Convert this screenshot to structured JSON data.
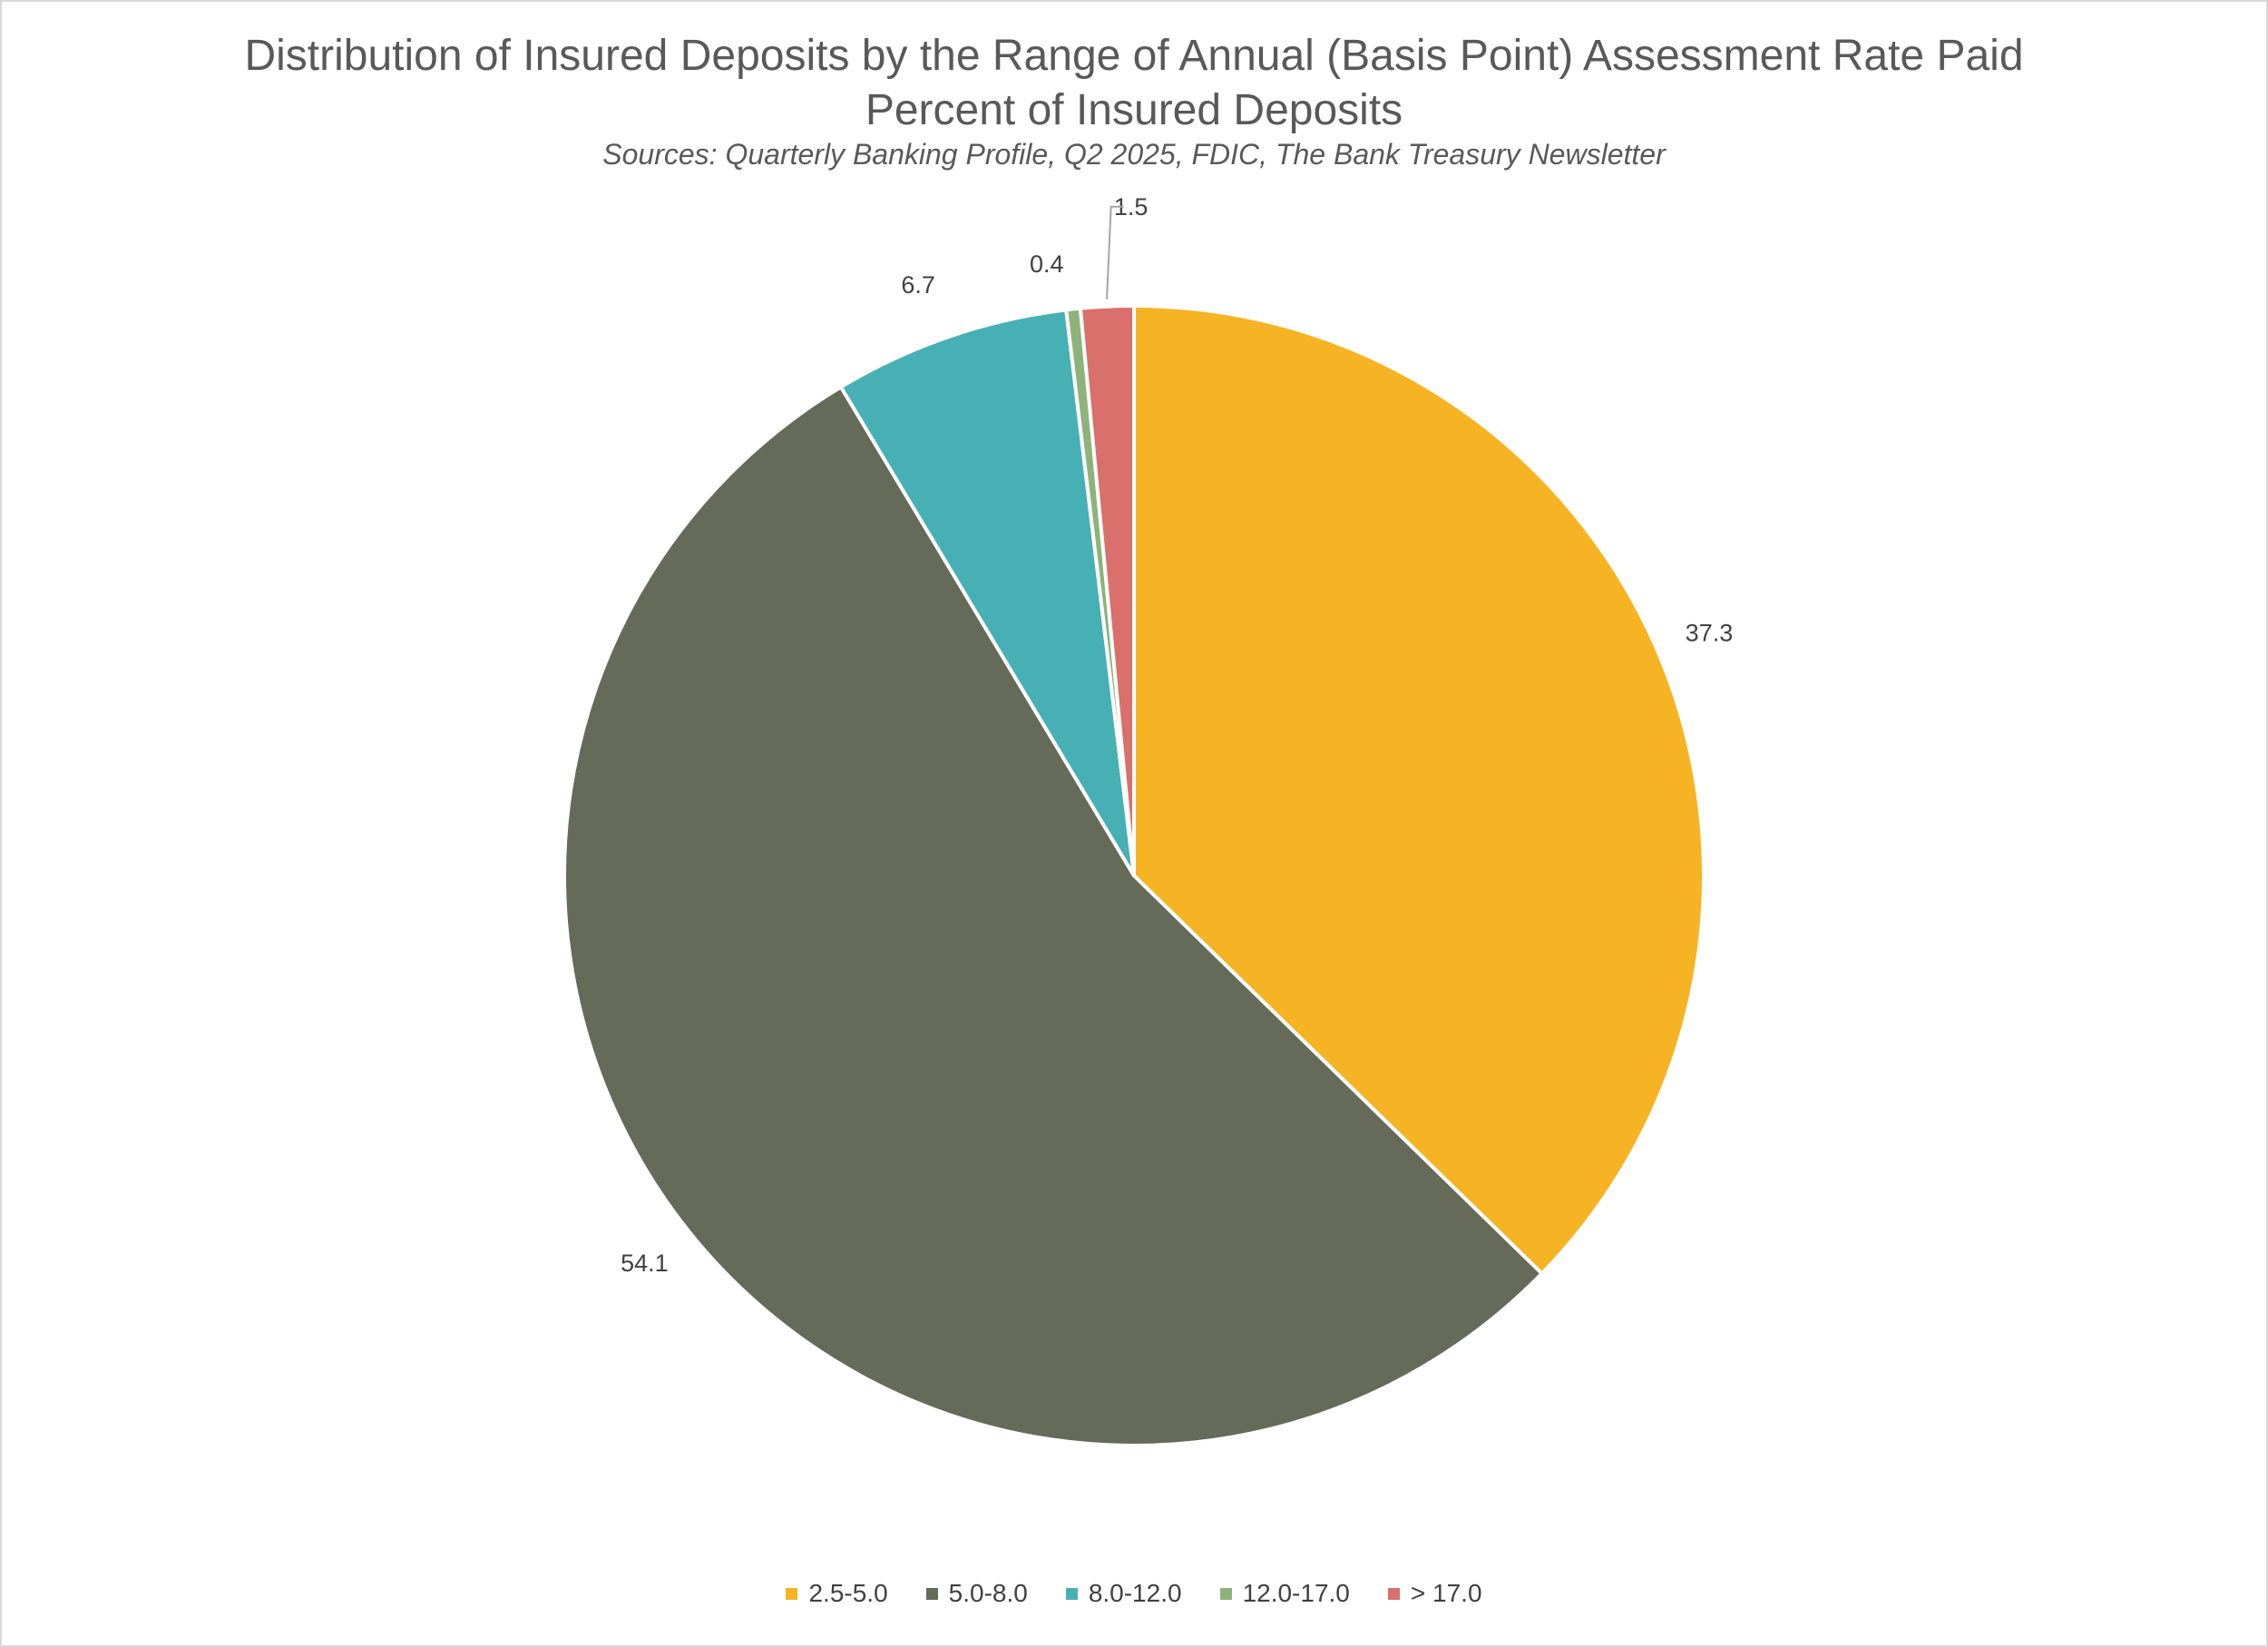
{
  "chart_data": {
    "type": "pie",
    "title": "Distribution of Insured Deposits by the Range of Annual (Basis Point) Assessment Rate Paid",
    "subtitle": "Percent of Insured Deposits",
    "source": "Sources: Quarterly Banking Profile, Q2 2025, FDIC, The Bank Treasury Newsletter",
    "categories": [
      "2.5-5.0",
      "5.0-8.0",
      "8.0-12.0",
      "12.0-17.0",
      "> 17.0"
    ],
    "values": [
      37.3,
      54.1,
      6.7,
      0.4,
      1.5
    ],
    "labels": [
      "37.3",
      "54.1",
      "6.7",
      "0.4",
      "1.5"
    ],
    "colors": [
      "#F6B323",
      "#666B59",
      "#47B0B5",
      "#8DB37A",
      "#D9706B"
    ],
    "legend_position": "bottom"
  }
}
